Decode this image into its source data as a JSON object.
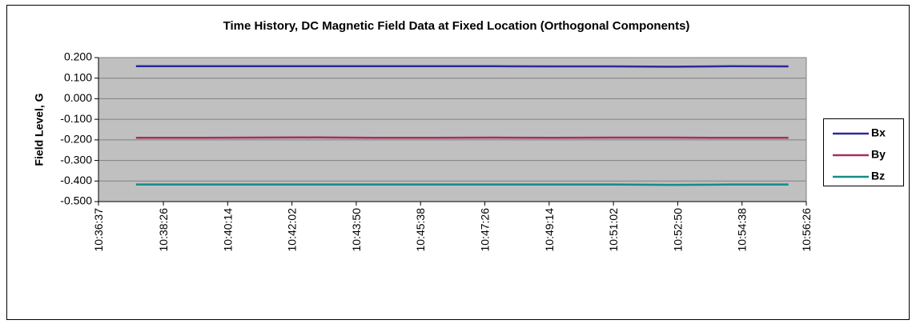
{
  "chart_data": {
    "type": "line",
    "title": "Time History, DC Magnetic Field Data at Fixed Location (Orthogonal Components)",
    "ylabel": "Field Level, G",
    "x": [
      "10:37:40",
      "10:39:20",
      "10:41:00",
      "10:42:40",
      "10:44:20",
      "10:46:00",
      "10:47:40",
      "10:49:20",
      "10:51:00",
      "10:52:40",
      "10:54:20",
      "10:55:56"
    ],
    "series": [
      {
        "name": "Bx",
        "color": "#2a2a9c",
        "values": [
          0.158,
          0.158,
          0.158,
          0.158,
          0.158,
          0.158,
          0.158,
          0.157,
          0.157,
          0.156,
          0.158,
          0.157
        ]
      },
      {
        "name": "By",
        "color": "#a33060",
        "values": [
          -0.19,
          -0.19,
          -0.189,
          -0.188,
          -0.19,
          -0.19,
          -0.189,
          -0.19,
          -0.189,
          -0.189,
          -0.19,
          -0.19
        ]
      },
      {
        "name": "Bz",
        "color": "#168a8a",
        "values": [
          -0.417,
          -0.417,
          -0.417,
          -0.417,
          -0.417,
          -0.417,
          -0.417,
          -0.417,
          -0.417,
          -0.419,
          -0.417,
          -0.417
        ]
      }
    ],
    "xlim": [
      "10:36:37",
      "10:56:26"
    ],
    "xticks": [
      "10:36:37",
      "10:38:26",
      "10:40:14",
      "10:42:02",
      "10:43:50",
      "10:45:38",
      "10:47:26",
      "10:49:14",
      "10:51:02",
      "10:52:50",
      "10:54:38",
      "10:56:26"
    ],
    "ylim": [
      -0.5,
      0.2
    ],
    "yticks": [
      {
        "value": 0.2,
        "label": "0.200"
      },
      {
        "value": 0.1,
        "label": "0.100"
      },
      {
        "value": 0,
        "label": "0.000"
      },
      {
        "value": -0.1,
        "label": "-0.100"
      },
      {
        "value": -0.2,
        "label": "-0.200"
      },
      {
        "value": -0.3,
        "label": "-0.300"
      },
      {
        "value": -0.4,
        "label": "-0.400"
      },
      {
        "value": -0.5,
        "label": "-0.500"
      }
    ],
    "grid": true,
    "legend": "right"
  }
}
